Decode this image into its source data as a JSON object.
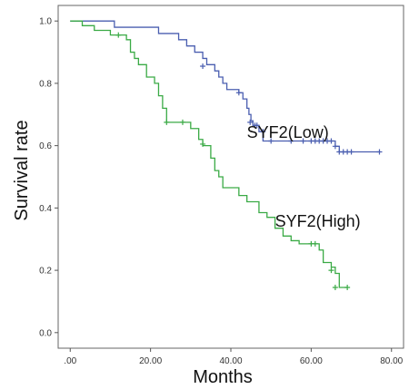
{
  "chart_data": {
    "type": "line",
    "title": "",
    "xlabel": "Months",
    "ylabel": "Survival rate",
    "xlim": [
      -3,
      83
    ],
    "ylim": [
      -0.05,
      1.05
    ],
    "x_ticks": [
      0,
      20,
      40,
      60,
      80
    ],
    "x_tick_labels": [
      ".00",
      "20.00",
      "40.00",
      "60.00",
      "80.00"
    ],
    "y_ticks": [
      0,
      0.2,
      0.4,
      0.6,
      0.8,
      1.0
    ],
    "y_tick_labels": [
      "0.0",
      "0.2",
      "0.4",
      "0.6",
      "0.8",
      "1.0"
    ],
    "grid": false,
    "series": [
      {
        "name": "SYF2(Low)",
        "color": "#4a5eb0",
        "label_at": [
          44,
          0.625
        ],
        "steps": [
          [
            0,
            1.0
          ],
          [
            11,
            0.98
          ],
          [
            22,
            0.96
          ],
          [
            27,
            0.94
          ],
          [
            29,
            0.92
          ],
          [
            31,
            0.9
          ],
          [
            33,
            0.88
          ],
          [
            34,
            0.86
          ],
          [
            36,
            0.84
          ],
          [
            37,
            0.82
          ],
          [
            38,
            0.8
          ],
          [
            39,
            0.78
          ],
          [
            42,
            0.77
          ],
          [
            43,
            0.75
          ],
          [
            44,
            0.72
          ],
          [
            44.5,
            0.7
          ],
          [
            45,
            0.68
          ],
          [
            45.5,
            0.665
          ],
          [
            47,
            0.645
          ],
          [
            48,
            0.615
          ],
          [
            66,
            0.598
          ],
          [
            67,
            0.58
          ],
          [
            77,
            0.58
          ]
        ],
        "censored": [
          [
            33,
            0.855
          ],
          [
            42,
            0.77
          ],
          [
            44.8,
            0.675
          ],
          [
            46,
            0.665
          ],
          [
            46.5,
            0.665
          ],
          [
            48,
            0.645
          ],
          [
            50,
            0.615
          ],
          [
            55,
            0.615
          ],
          [
            58,
            0.615
          ],
          [
            60,
            0.615
          ],
          [
            61,
            0.615
          ],
          [
            62,
            0.615
          ],
          [
            63,
            0.615
          ],
          [
            64,
            0.615
          ],
          [
            65,
            0.615
          ],
          [
            66,
            0.598
          ],
          [
            67,
            0.58
          ],
          [
            68,
            0.58
          ],
          [
            69,
            0.58
          ],
          [
            70,
            0.58
          ],
          [
            77,
            0.58
          ]
        ]
      },
      {
        "name": "SYF2(High)",
        "color": "#3aaa45",
        "label_at": [
          51,
          0.34
        ],
        "steps": [
          [
            0,
            1.0
          ],
          [
            3,
            0.985
          ],
          [
            6,
            0.97
          ],
          [
            10,
            0.955
          ],
          [
            14,
            0.94
          ],
          [
            15,
            0.9
          ],
          [
            16,
            0.88
          ],
          [
            17,
            0.86
          ],
          [
            19,
            0.82
          ],
          [
            21,
            0.8
          ],
          [
            22,
            0.76
          ],
          [
            23,
            0.72
          ],
          [
            24,
            0.675
          ],
          [
            30,
            0.655
          ],
          [
            32,
            0.62
          ],
          [
            33,
            0.6
          ],
          [
            35,
            0.56
          ],
          [
            36,
            0.52
          ],
          [
            37,
            0.5
          ],
          [
            38,
            0.465
          ],
          [
            42,
            0.44
          ],
          [
            44,
            0.42
          ],
          [
            47,
            0.385
          ],
          [
            49,
            0.37
          ],
          [
            51,
            0.335
          ],
          [
            53,
            0.31
          ],
          [
            55,
            0.295
          ],
          [
            57,
            0.285
          ],
          [
            62,
            0.265
          ],
          [
            63,
            0.225
          ],
          [
            65,
            0.21
          ],
          [
            66,
            0.19
          ],
          [
            67,
            0.145
          ],
          [
            69,
            0.145
          ]
        ],
        "censored": [
          [
            12,
            0.955
          ],
          [
            24,
            0.675
          ],
          [
            28,
            0.675
          ],
          [
            33,
            0.605
          ],
          [
            60,
            0.285
          ],
          [
            61,
            0.285
          ],
          [
            65,
            0.2
          ],
          [
            66,
            0.145
          ],
          [
            69,
            0.145
          ]
        ]
      }
    ]
  }
}
